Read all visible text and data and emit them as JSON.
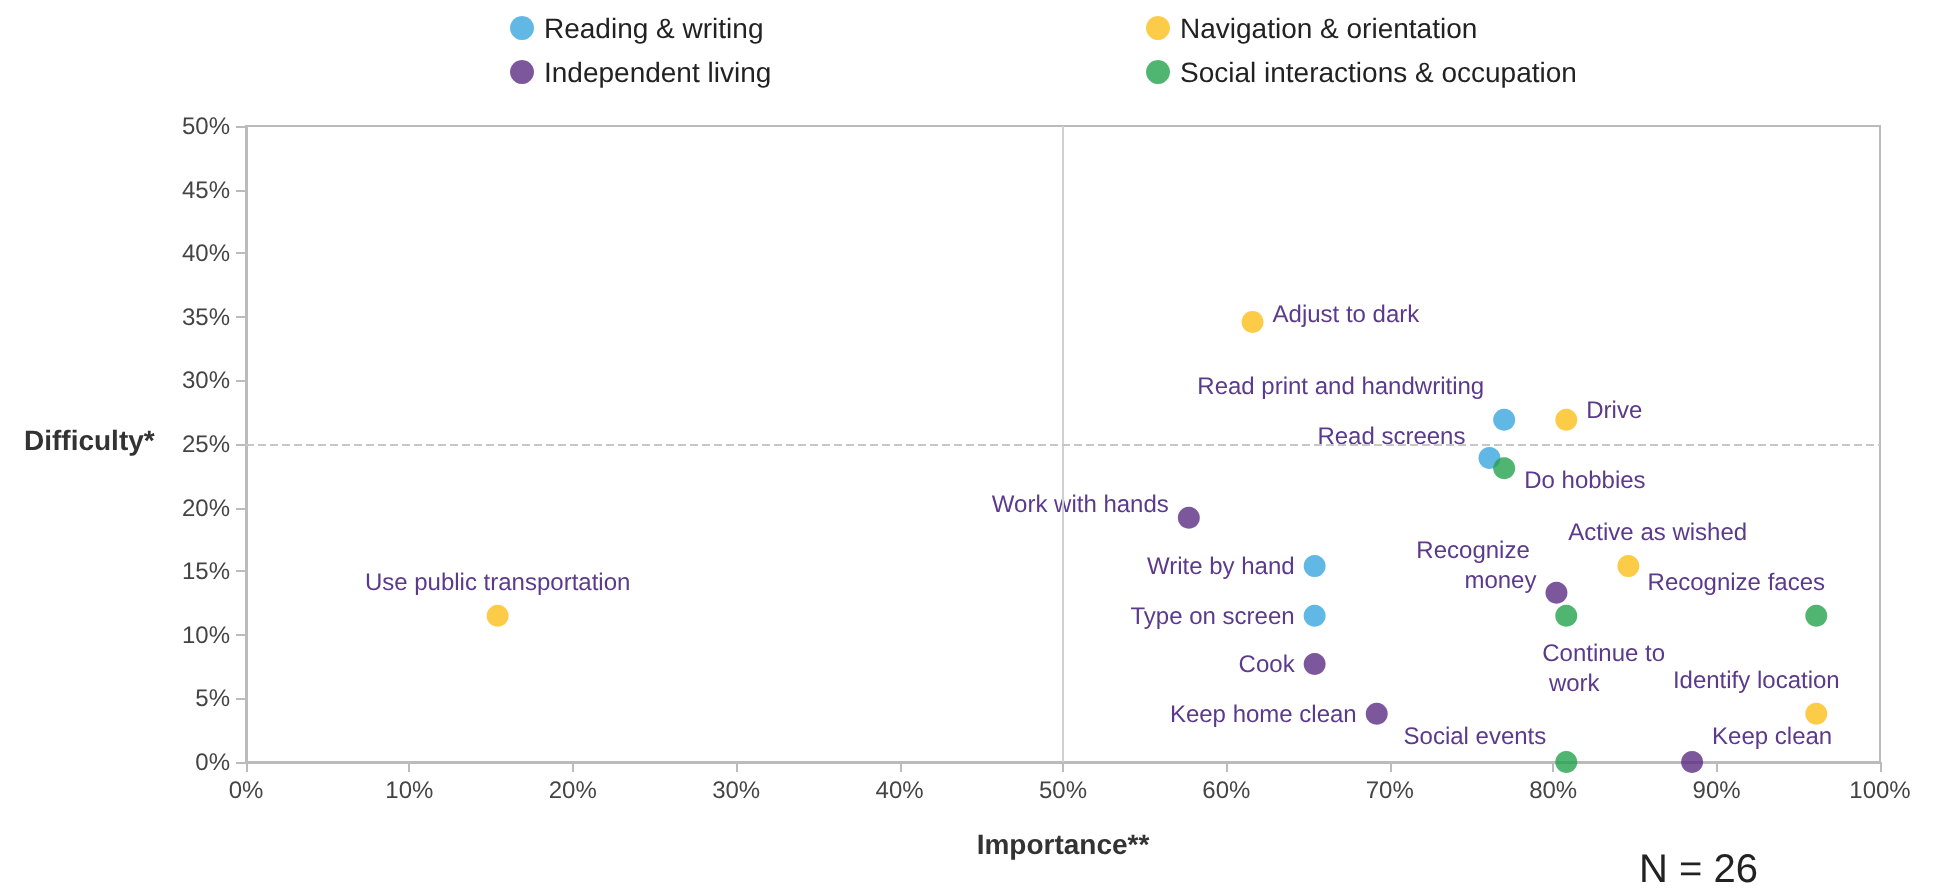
{
  "chart_data": {
    "type": "scatter",
    "xlabel": "Importance**",
    "ylabel": "Difficulty*",
    "xlim": [
      0,
      100
    ],
    "ylim": [
      0,
      50
    ],
    "xticks": [
      {
        "value": 0,
        "label": "0%"
      },
      {
        "value": 10,
        "label": "10%"
      },
      {
        "value": 20,
        "label": "20%"
      },
      {
        "value": 30,
        "label": "30%"
      },
      {
        "value": 40,
        "label": "40%"
      },
      {
        "value": 50,
        "label": "50%"
      },
      {
        "value": 60,
        "label": "60%"
      },
      {
        "value": 70,
        "label": "70%"
      },
      {
        "value": 80,
        "label": "80%"
      },
      {
        "value": 90,
        "label": "90%"
      },
      {
        "value": 100,
        "label": "100%"
      }
    ],
    "yticks": [
      {
        "value": 0,
        "label": "0%"
      },
      {
        "value": 5,
        "label": "5%"
      },
      {
        "value": 10,
        "label": "10%"
      },
      {
        "value": 15,
        "label": "15%"
      },
      {
        "value": 20,
        "label": "20%"
      },
      {
        "value": 25,
        "label": "25%"
      },
      {
        "value": 30,
        "label": "30%"
      },
      {
        "value": 35,
        "label": "35%"
      },
      {
        "value": 40,
        "label": "40%"
      },
      {
        "value": 45,
        "label": "45%"
      },
      {
        "value": 50,
        "label": "50%"
      }
    ],
    "series": [
      {
        "name": "Reading & writing",
        "color": "#3aa6dd",
        "x": [
          77.0,
          76.1,
          65.4,
          65.4
        ],
        "values": [
          26.9,
          23.9,
          15.4,
          11.5
        ]
      },
      {
        "name": "Navigation & orientation",
        "color": "#fbbf1c",
        "x": [
          15.4,
          61.6,
          80.8,
          84.6,
          96.1
        ],
        "values": [
          11.5,
          34.6,
          26.9,
          15.4,
          3.8
        ]
      },
      {
        "name": "Independent living",
        "color": "#5c2d83",
        "x": [
          57.7,
          65.4,
          69.2,
          80.2,
          88.5
        ],
        "values": [
          19.2,
          7.7,
          3.8,
          13.3,
          0
        ]
      },
      {
        "name": "Social interactions & occupation",
        "color": "#23a24d",
        "x": [
          77.0,
          80.8,
          96.1,
          80.8
        ],
        "values": [
          23.1,
          11.5,
          11.5,
          0
        ]
      }
    ],
    "ref_lines": [
      {
        "axis": "x",
        "value": 50,
        "color": "#d0d0d0",
        "line_style": "solid"
      },
      {
        "axis": "y",
        "value": 25,
        "color": "#c8c8c8",
        "line_style": "dashed"
      }
    ],
    "annotations": [
      {
        "text": "Use public transportation",
        "x": 15.4,
        "y": 11.5
      },
      {
        "text": "Adjust to dark",
        "x": 61.6,
        "y": 34.6
      },
      {
        "text": "Read print and handwriting",
        "x": 77.0,
        "y": 26.9
      },
      {
        "text": "Drive",
        "x": 80.8,
        "y": 26.9
      },
      {
        "text": "Read screens",
        "x": 76.1,
        "y": 23.9
      },
      {
        "text": "Do hobbies",
        "x": 77.0,
        "y": 23.1
      },
      {
        "text": "Work with hands",
        "x": 57.7,
        "y": 19.2
      },
      {
        "text": "Write by hand",
        "x": 65.4,
        "y": 15.4
      },
      {
        "text": "Type on screen",
        "x": 65.4,
        "y": 11.5
      },
      {
        "text": "Cook",
        "x": 65.4,
        "y": 7.7
      },
      {
        "text": "Keep home clean",
        "x": 69.2,
        "y": 3.8
      },
      {
        "text": "Recognize money",
        "x": 80.2,
        "y": 13.3
      },
      {
        "text": "Continue to work",
        "x": 80.8,
        "y": 11.5
      },
      {
        "text": "Active as wished",
        "x": 84.6,
        "y": 15.4
      },
      {
        "text": "Recognize faces",
        "x": 96.1,
        "y": 11.5
      },
      {
        "text": "Identify location",
        "x": 96.1,
        "y": 3.8
      },
      {
        "text": "Social events",
        "x": 80.8,
        "y": 0
      },
      {
        "text": "Keep clean",
        "x": 88.5,
        "y": 0
      },
      "N = 26"
    ],
    "legend": "top",
    "marker": "circle",
    "grid": false
  }
}
